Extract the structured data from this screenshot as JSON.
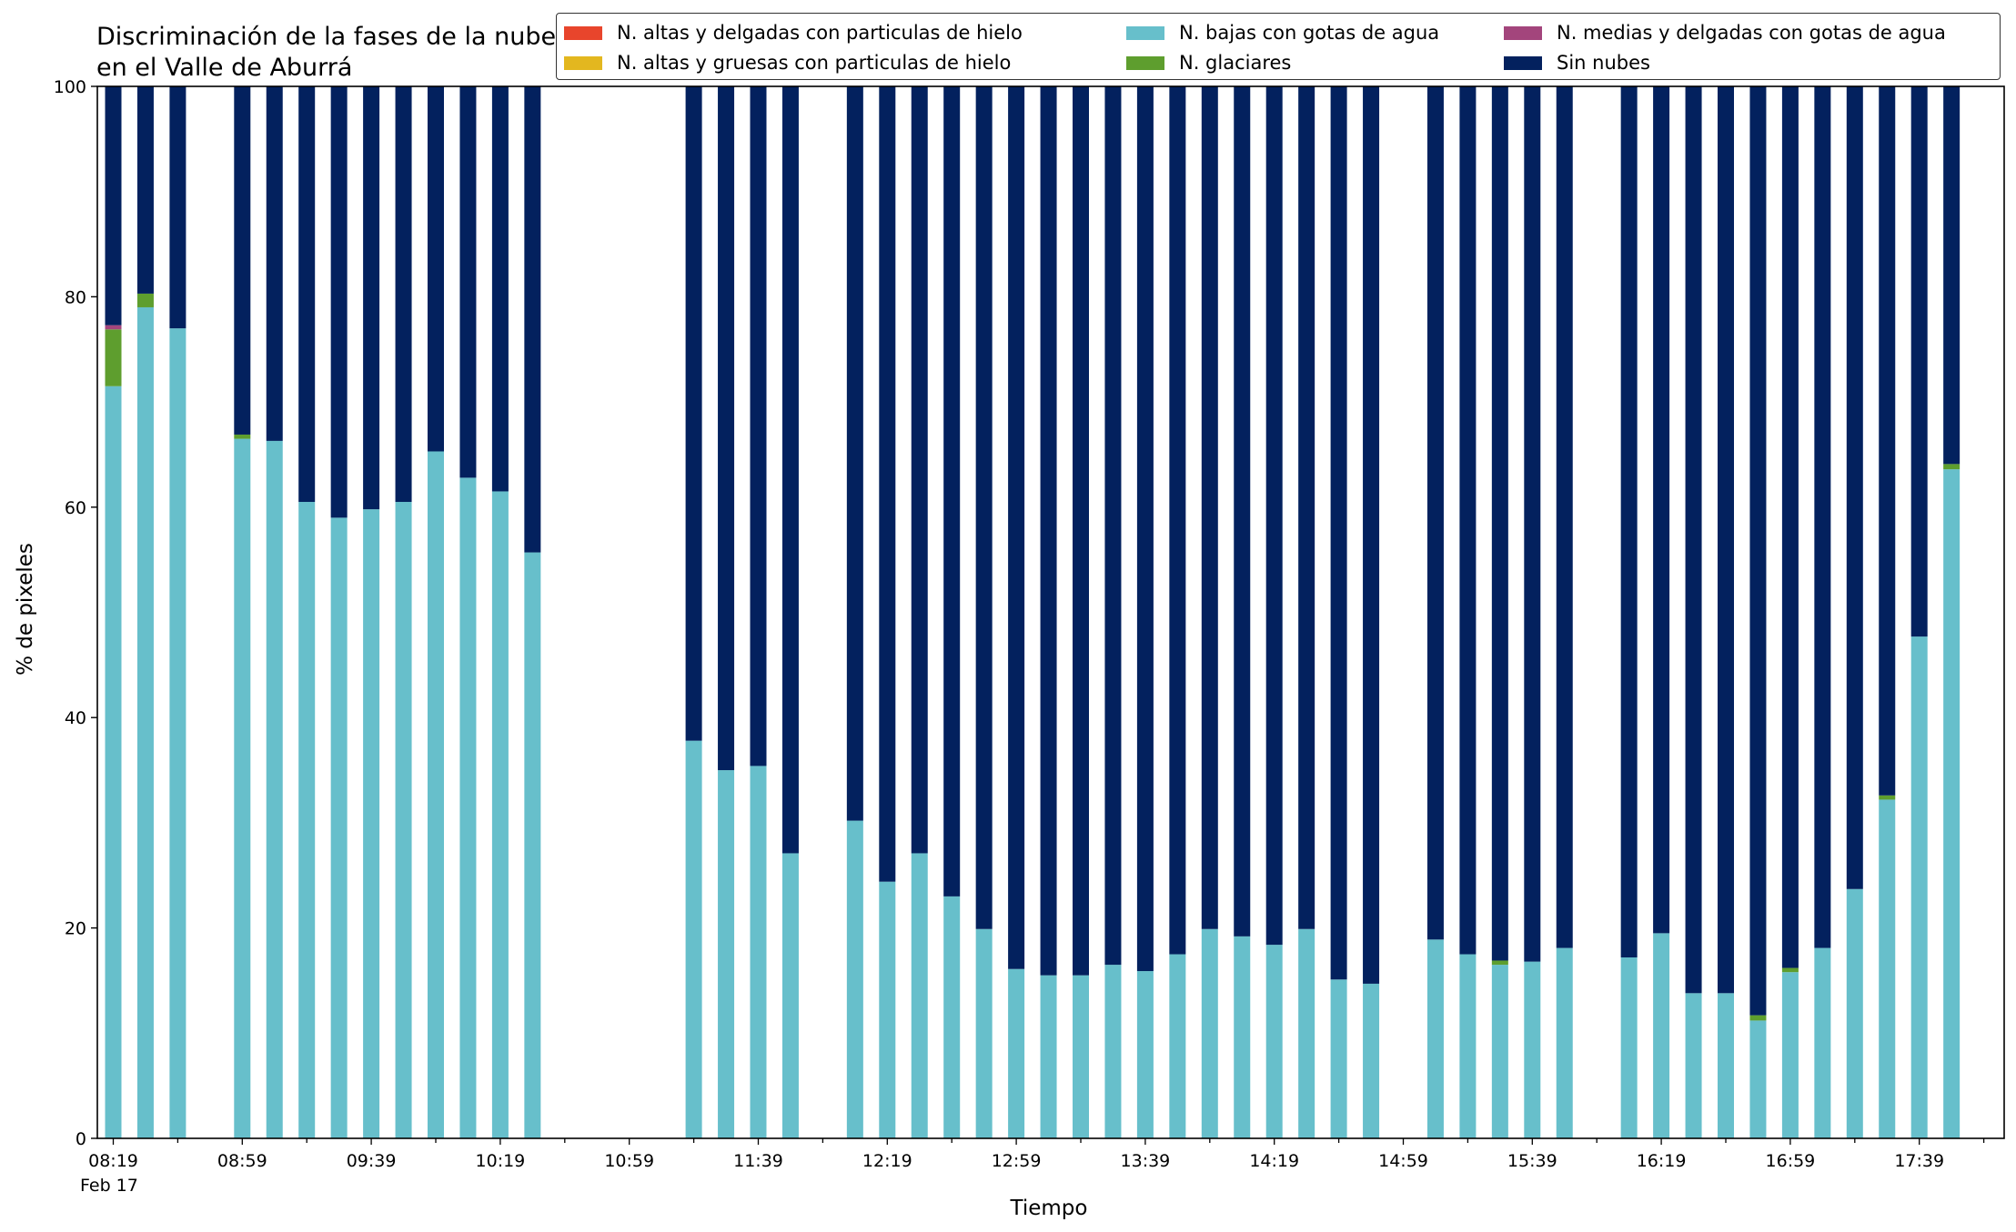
{
  "chart_data": {
    "type": "bar",
    "stacked": true,
    "title": "Discriminación de la fases de la nube en el Valle de Aburrá",
    "xlabel": "Tiempo",
    "ylabel": "% de pixeles",
    "ylim": [
      0,
      100
    ],
    "y_ticks": [
      "0",
      "20",
      "40",
      "60",
      "80",
      "100"
    ],
    "x_tick_labels": [
      "08:19",
      "08:59",
      "09:39",
      "10:19",
      "10:59",
      "11:39",
      "12:19",
      "12:59",
      "13:39",
      "14:19",
      "14:59",
      "15:39",
      "16:19",
      "16:59",
      "17:39"
    ],
    "x_date_label": "Feb 17",
    "x_start": "08:19",
    "x_step_minutes": 10,
    "grid": false,
    "legend_position": "top",
    "colors": {
      "altas_delgadas": "#e8452c",
      "altas_gruesas": "#e3b71f",
      "bajas_agua": "#67bfcb",
      "glaciares": "#5e9e2e",
      "medias_delgadas": "#a3457c",
      "sin_nubes": "#03215e"
    },
    "legend": [
      {
        "key": "altas_delgadas",
        "name": "N. altas y delgadas con particulas de hielo"
      },
      {
        "key": "altas_gruesas",
        "name": "N. altas y gruesas con particulas de hielo"
      },
      {
        "key": "bajas_agua",
        "name": "N. bajas con gotas de agua"
      },
      {
        "key": "glaciares",
        "name": "N. glaciares"
      },
      {
        "key": "medias_delgadas",
        "name": "N. medias y delgadas con gotas de agua"
      },
      {
        "key": "sin_nubes",
        "name": "Sin nubes"
      }
    ],
    "categories": [
      "08:19",
      "08:29",
      "08:39",
      "08:49",
      "08:59",
      "09:09",
      "09:19",
      "09:29",
      "09:39",
      "09:49",
      "09:59",
      "10:09",
      "10:19",
      "10:29",
      "10:39",
      "10:49",
      "10:59",
      "11:09",
      "11:19",
      "11:29",
      "11:39",
      "11:49",
      "11:59",
      "12:09",
      "12:19",
      "12:29",
      "12:39",
      "12:49",
      "12:59",
      "13:09",
      "13:19",
      "13:29",
      "13:39",
      "13:49",
      "13:59",
      "14:09",
      "14:19",
      "14:29",
      "14:39",
      "14:49",
      "14:59",
      "15:09",
      "15:19",
      "15:29",
      "15:39",
      "15:49",
      "15:59",
      "16:09",
      "16:19",
      "16:29",
      "16:39",
      "16:49",
      "16:59",
      "17:09",
      "17:19",
      "17:29",
      "17:39",
      "17:49"
    ],
    "series": [
      {
        "key": "bajas_agua",
        "name": "N. bajas con gotas de agua",
        "values": [
          71.5,
          79,
          77,
          null,
          66.5,
          66.3,
          60.5,
          59,
          59.8,
          60.5,
          65.3,
          62.8,
          61.5,
          55.7,
          null,
          null,
          null,
          null,
          37.8,
          35,
          35.4,
          27.1,
          null,
          30.2,
          24.4,
          27.1,
          23,
          19.9,
          16.1,
          15.5,
          15.5,
          16.5,
          15.9,
          17.5,
          19.9,
          19.2,
          18.4,
          19.9,
          15.1,
          14.7,
          null,
          18.9,
          17.5,
          16.5,
          16.8,
          18.1,
          null,
          17.2,
          19.5,
          13.8,
          13.8,
          11.2,
          15.8,
          18.1,
          23.7,
          32.2,
          47.7,
          63.6
        ]
      },
      {
        "key": "glaciares",
        "name": "N. glaciares",
        "values": [
          5.4,
          1.3,
          0,
          null,
          0.4,
          0,
          0,
          0,
          0,
          0,
          0,
          0,
          0,
          0,
          null,
          null,
          null,
          null,
          0,
          0,
          0,
          0,
          null,
          0,
          0,
          0,
          0,
          0,
          0,
          0,
          0,
          0,
          0,
          0,
          0,
          0,
          0,
          0,
          0,
          0,
          null,
          0,
          0,
          0.4,
          0,
          0,
          null,
          0,
          0,
          0,
          0,
          0.5,
          0.4,
          0,
          0,
          0.4,
          0,
          0.5
        ]
      },
      {
        "key": "medias_delgadas",
        "name": "N. medias y delgadas con gotas de agua",
        "values": [
          0.4,
          0,
          0,
          null,
          0,
          0,
          0,
          0,
          0,
          0,
          0,
          0,
          0,
          0,
          null,
          null,
          null,
          null,
          0,
          0,
          0,
          0,
          null,
          0,
          0,
          0,
          0,
          0,
          0,
          0,
          0,
          0,
          0,
          0,
          0,
          0,
          0,
          0,
          0,
          0,
          null,
          0,
          0,
          0,
          0,
          0,
          null,
          0,
          0,
          0,
          0,
          0,
          0,
          0,
          0,
          0,
          0,
          0
        ]
      },
      {
        "key": "altas_gruesas",
        "name": "N. altas y gruesas con particulas de hielo",
        "values": [
          0,
          0,
          0,
          null,
          0,
          0,
          0,
          0,
          0,
          0,
          0,
          0,
          0,
          0,
          null,
          null,
          null,
          null,
          0,
          0,
          0,
          0,
          null,
          0,
          0,
          0,
          0,
          0,
          0,
          0,
          0,
          0,
          0,
          0,
          0,
          0,
          0,
          0,
          0,
          0,
          null,
          0,
          0,
          0,
          0,
          0,
          null,
          0,
          0,
          0,
          0,
          0,
          0,
          0,
          0,
          0,
          0,
          0
        ]
      },
      {
        "key": "altas_delgadas",
        "name": "N. altas y delgadas con particulas de hielo",
        "values": [
          0,
          0,
          0,
          null,
          0,
          0,
          0,
          0,
          0,
          0,
          0,
          0,
          0,
          0,
          null,
          null,
          null,
          null,
          0,
          0,
          0,
          0,
          null,
          0,
          0,
          0,
          0,
          0,
          0,
          0,
          0,
          0,
          0,
          0,
          0,
          0,
          0,
          0,
          0,
          0,
          null,
          0,
          0,
          0,
          0,
          0,
          null,
          0,
          0,
          0,
          0,
          0,
          0,
          0,
          0,
          0,
          0,
          0
        ]
      },
      {
        "key": "sin_nubes",
        "name": "Sin nubes",
        "values": [
          22.7,
          19.7,
          23,
          null,
          33.1,
          33.7,
          39.5,
          41,
          40.2,
          39.5,
          34.7,
          37.2,
          38.5,
          44.3,
          null,
          null,
          null,
          null,
          62.2,
          65,
          64.6,
          72.9,
          null,
          69.8,
          75.6,
          72.9,
          77,
          80.1,
          83.9,
          84.5,
          84.5,
          83.5,
          84.1,
          82.5,
          80.1,
          80.8,
          81.6,
          80.1,
          84.9,
          85.3,
          null,
          81.1,
          82.5,
          83.1,
          83.2,
          81.9,
          null,
          82.8,
          80.5,
          86.2,
          86.2,
          88.3,
          83.8,
          81.9,
          76.3,
          67.4,
          52.3,
          35.9
        ]
      }
    ]
  }
}
